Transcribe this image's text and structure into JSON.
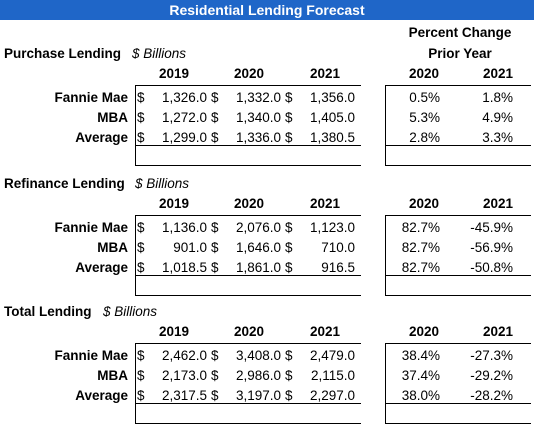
{
  "title": "Residential Lending Forecast",
  "pct_header_line1": "Percent Change",
  "pct_header_line2": "Prior Year",
  "currency_symbol": "$",
  "sections": [
    {
      "label": "Purchase Lending",
      "unit": "$ Billions",
      "years": [
        "2019",
        "2020",
        "2021"
      ],
      "pct_years": [
        "2020",
        "2021"
      ],
      "rows": [
        {
          "name": "Fannie Mae",
          "values": [
            "1,326.0",
            "1,332.0",
            "1,356.0"
          ],
          "pct": [
            "0.5%",
            "1.8%"
          ]
        },
        {
          "name": "MBA",
          "values": [
            "1,272.0",
            "1,340.0",
            "1,405.0"
          ],
          "pct": [
            "5.3%",
            "4.9%"
          ]
        },
        {
          "name": "Average",
          "values": [
            "1,299.0",
            "1,336.0",
            "1,380.5"
          ],
          "pct": [
            "2.8%",
            "3.3%"
          ]
        }
      ]
    },
    {
      "label": "Refinance Lending",
      "unit": "$ Billions",
      "years": [
        "2019",
        "2020",
        "2021"
      ],
      "pct_years": [
        "2020",
        "2021"
      ],
      "rows": [
        {
          "name": "Fannie Mae",
          "values": [
            "1,136.0",
            "2,076.0",
            "1,123.0"
          ],
          "pct": [
            "82.7%",
            "-45.9%"
          ]
        },
        {
          "name": "MBA",
          "values": [
            "901.0",
            "1,646.0",
            "710.0"
          ],
          "pct": [
            "82.7%",
            "-56.9%"
          ]
        },
        {
          "name": "Average",
          "values": [
            "1,018.5",
            "1,861.0",
            "916.5"
          ],
          "pct": [
            "82.7%",
            "-50.8%"
          ]
        }
      ]
    },
    {
      "label": "Total Lending",
      "unit": "$ Billions",
      "years": [
        "2019",
        "2020",
        "2021"
      ],
      "pct_years": [
        "2020",
        "2021"
      ],
      "rows": [
        {
          "name": "Fannie Mae",
          "values": [
            "2,462.0",
            "3,408.0",
            "2,479.0"
          ],
          "pct": [
            "38.4%",
            "-27.3%"
          ]
        },
        {
          "name": "MBA",
          "values": [
            "2,173.0",
            "2,986.0",
            "2,115.0"
          ],
          "pct": [
            "37.4%",
            "-29.2%"
          ]
        },
        {
          "name": "Average",
          "values": [
            "2,317.5",
            "3,197.0",
            "2,297.0"
          ],
          "pct": [
            "38.0%",
            "-28.2%"
          ]
        }
      ]
    }
  ]
}
